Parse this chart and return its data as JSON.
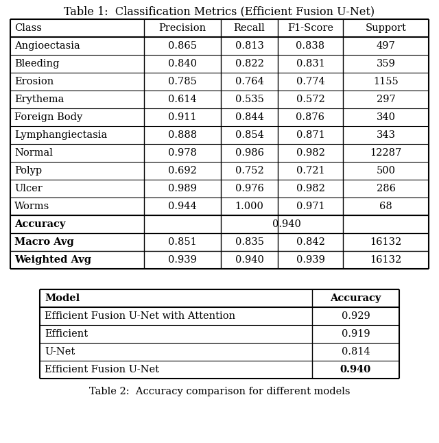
{
  "title1": "Table 1:  Classification Metrics (Efficient Fusion U-Net)",
  "table1_headers": [
    "Class",
    "Precision",
    "Recall",
    "F1-Score",
    "Support"
  ],
  "table1_rows": [
    [
      "Angioectasia",
      "0.865",
      "0.813",
      "0.838",
      "497"
    ],
    [
      "Bleeding",
      "0.840",
      "0.822",
      "0.831",
      "359"
    ],
    [
      "Erosion",
      "0.785",
      "0.764",
      "0.774",
      "1155"
    ],
    [
      "Erythema",
      "0.614",
      "0.535",
      "0.572",
      "297"
    ],
    [
      "Foreign Body",
      "0.911",
      "0.844",
      "0.876",
      "340"
    ],
    [
      "Lymphangiectasia",
      "0.888",
      "0.854",
      "0.871",
      "343"
    ],
    [
      "Normal",
      "0.978",
      "0.986",
      "0.982",
      "12287"
    ],
    [
      "Polyp",
      "0.692",
      "0.752",
      "0.721",
      "500"
    ],
    [
      "Ulcer",
      "0.989",
      "0.976",
      "0.982",
      "286"
    ],
    [
      "Worms",
      "0.944",
      "1.000",
      "0.971",
      "68"
    ]
  ],
  "accuracy_val": "0.940",
  "macro_row": [
    "Macro Avg",
    "0.851",
    "0.835",
    "0.842",
    "16132"
  ],
  "weighted_row": [
    "Weighted Avg",
    "0.939",
    "0.940",
    "0.939",
    "16132"
  ],
  "table2_headers": [
    "Model",
    "Accuracy"
  ],
  "table2_rows": [
    [
      "Efficient Fusion U-Net with Attention",
      "0.929"
    ],
    [
      "Efficient",
      "0.919"
    ],
    [
      "U-Net",
      "0.814"
    ],
    [
      "Efficient Fusion U-Net",
      "0.940"
    ]
  ],
  "caption2": "Table 2:  Accuracy comparison for different models",
  "bg_color": "#ffffff",
  "font_size": 10.5,
  "title_font_size": 11.5
}
